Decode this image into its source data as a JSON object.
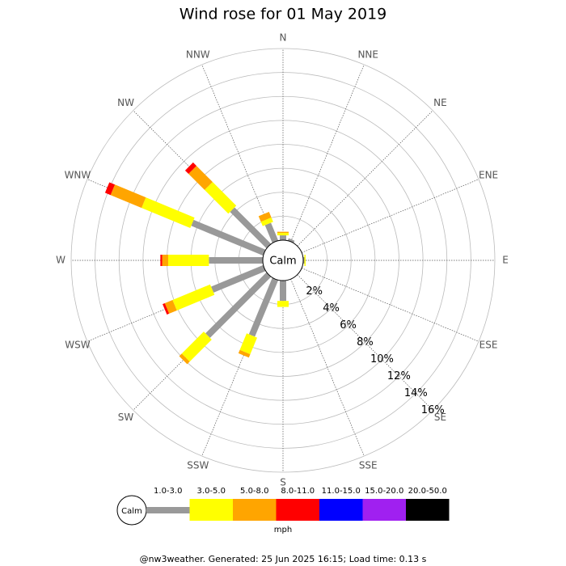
{
  "chart_data": {
    "type": "windrose",
    "title": "Wind rose for 01 May 2019",
    "directions": [
      "N",
      "NNE",
      "NE",
      "ENE",
      "E",
      "ESE",
      "SE",
      "SSE",
      "S",
      "SSW",
      "SW",
      "WSW",
      "W",
      "WNW",
      "NW",
      "NNW"
    ],
    "series": [
      {
        "name": "1.0-3.0",
        "color": "#999999",
        "values": [
          0.4,
          0.2,
          0,
          0,
          0.1,
          0,
          0,
          0,
          1.7,
          5.1,
          7.2,
          4.7,
          4.5,
          6.5,
          4.3,
          1.6
        ]
      },
      {
        "name": "3.0-5.0",
        "color": "#ffff00",
        "values": [
          0.2,
          0,
          0,
          0,
          0.1,
          0,
          0,
          0,
          0.5,
          1.5,
          2.6,
          3.4,
          3.4,
          4.4,
          2.8,
          0.4
        ]
      },
      {
        "name": "5.0-8.0",
        "color": "#ffa500",
        "values": [
          0.1,
          0,
          0,
          0,
          0,
          0,
          0,
          0,
          0,
          0.3,
          0.3,
          0.7,
          0.5,
          2.8,
          1.9,
          0.5
        ]
      },
      {
        "name": "8.0-11.0",
        "color": "#ff0000",
        "values": [
          0,
          0,
          0,
          0,
          0,
          0,
          0,
          0,
          0,
          0,
          0,
          0.2,
          0.15,
          0.5,
          0.4,
          0
        ]
      },
      {
        "name": "11.0-15.0",
        "color": "#0000ff",
        "values": [
          0,
          0,
          0,
          0,
          0,
          0,
          0,
          0,
          0,
          0,
          0,
          0,
          0,
          0,
          0,
          0
        ]
      },
      {
        "name": "15.0-20.0",
        "color": "#a020f0",
        "values": [
          0,
          0,
          0,
          0,
          0,
          0,
          0,
          0,
          0,
          0,
          0,
          0,
          0,
          0,
          0,
          0
        ]
      },
      {
        "name": "20.0-50.0",
        "color": "#000000",
        "values": [
          0,
          0,
          0,
          0,
          0,
          0,
          0,
          0,
          0,
          0,
          0,
          0,
          0,
          0,
          0,
          0
        ]
      }
    ],
    "rlim": [
      0,
      16
    ],
    "rticks": [
      {
        "value": 2,
        "label": "2%"
      },
      {
        "value": 4,
        "label": "4%"
      },
      {
        "value": 6,
        "label": "6%"
      },
      {
        "value": 8,
        "label": "8%"
      },
      {
        "value": 10,
        "label": "10%"
      },
      {
        "value": 12,
        "label": "12%"
      },
      {
        "value": 14,
        "label": "14%"
      },
      {
        "value": 16,
        "label": "16%"
      }
    ],
    "center_label": "Calm",
    "legend_unit": "mph"
  },
  "footer": "@nw3weather. Generated: 25 Jun 2025 16:15; Load time: 0.13 s"
}
